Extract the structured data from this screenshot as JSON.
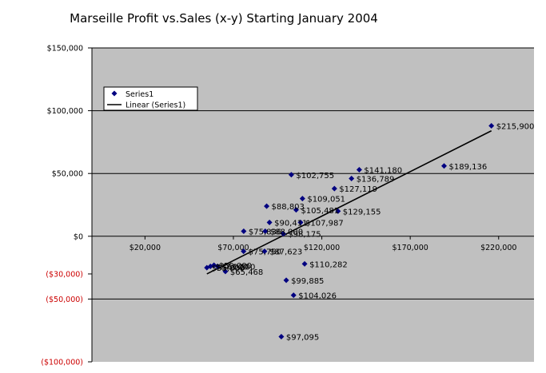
{
  "chart_data": {
    "type": "scatter",
    "title": "Marseille Profit vs.Sales (x-y) Starting January 2004",
    "xlabel": "",
    "ylabel": "",
    "xlim": [
      -10000,
      240000
    ],
    "ylim": [
      -100000,
      150000
    ],
    "x_ticks": [
      {
        "value": 20000,
        "label": "$20,000"
      },
      {
        "value": 70000,
        "label": "$70,000"
      },
      {
        "value": 120000,
        "label": "$120,000"
      },
      {
        "value": 170000,
        "label": "$170,000"
      },
      {
        "value": 220000,
        "label": "$220,000"
      }
    ],
    "y_ticks": [
      {
        "value": 150000,
        "label": "$150,000",
        "color": "#000000"
      },
      {
        "value": 100000,
        "label": "$100,000",
        "color": "#000000"
      },
      {
        "value": 50000,
        "label": "$50,000",
        "color": "#000000"
      },
      {
        "value": 0,
        "label": "$0",
        "color": "#000000"
      },
      {
        "value": -30000,
        "label": "($30,000)",
        "color": "#cc0000"
      },
      {
        "value": -50000,
        "label": "($50,000)",
        "color": "#cc0000"
      },
      {
        "value": -100000,
        "label": "($100,000)",
        "color": "#cc0000"
      }
    ],
    "grid": true,
    "legend": {
      "placement": "top-left",
      "entries": [
        "Series1",
        "Linear (Series1)"
      ]
    },
    "colors": {
      "plot_bg": "#c0c0c0",
      "marker": "#000080",
      "trendline": "#000000",
      "negative_tick": "#cc0000"
    },
    "series": [
      {
        "name": "Series1",
        "points": [
          {
            "x": 215900,
            "y": 88000,
            "label": "$215,900"
          },
          {
            "x": 189136,
            "y": 56000,
            "label": "$189,136"
          },
          {
            "x": 141180,
            "y": 53000,
            "label": "$141,180"
          },
          {
            "x": 136789,
            "y": 46000,
            "label": "$136,789"
          },
          {
            "x": 127119,
            "y": 38000,
            "label": "$127,119"
          },
          {
            "x": 129155,
            "y": 20000,
            "label": "$129,155"
          },
          {
            "x": 102755,
            "y": 49000,
            "label": "$102,755"
          },
          {
            "x": 109051,
            "y": 30000,
            "label": "$109,051"
          },
          {
            "x": 105481,
            "y": 21000,
            "label": "$105,481"
          },
          {
            "x": 107987,
            "y": 11000,
            "label": "$107,987"
          },
          {
            "x": 88803,
            "y": 24000,
            "label": "$88,803"
          },
          {
            "x": 90411,
            "y": 11000,
            "label": "$90,411"
          },
          {
            "x": 75836,
            "y": 4000,
            "label": "$75,836"
          },
          {
            "x": 88000,
            "y": 4000,
            "label": "$88,000"
          },
          {
            "x": 98175,
            "y": 2000,
            "label": "$98,175"
          },
          {
            "x": 75750,
            "y": -12000,
            "label": "$75,750"
          },
          {
            "x": 87623,
            "y": -12000,
            "label": "$87,623"
          },
          {
            "x": 110282,
            "y": -22000,
            "label": "$110,282"
          },
          {
            "x": 65468,
            "y": -28000,
            "label": "$65,468"
          },
          {
            "x": 55000,
            "y": -25000,
            "label": "$55,000"
          },
          {
            "x": 59000,
            "y": -23000,
            "label": "$59,000"
          },
          {
            "x": 61000,
            "y": -24000,
            "label": "$61,000"
          },
          {
            "x": 57000,
            "y": -24000,
            "label": "$57,000"
          },
          {
            "x": 99885,
            "y": -35000,
            "label": "$99,885"
          },
          {
            "x": 104026,
            "y": -47000,
            "label": "$104,026"
          },
          {
            "x": 97095,
            "y": -80000,
            "label": "$97,095"
          }
        ]
      }
    ],
    "trendline": {
      "name": "Linear (Series1)",
      "from": {
        "x": 55000,
        "y": -30000
      },
      "to": {
        "x": 215900,
        "y": 84000
      }
    }
  }
}
